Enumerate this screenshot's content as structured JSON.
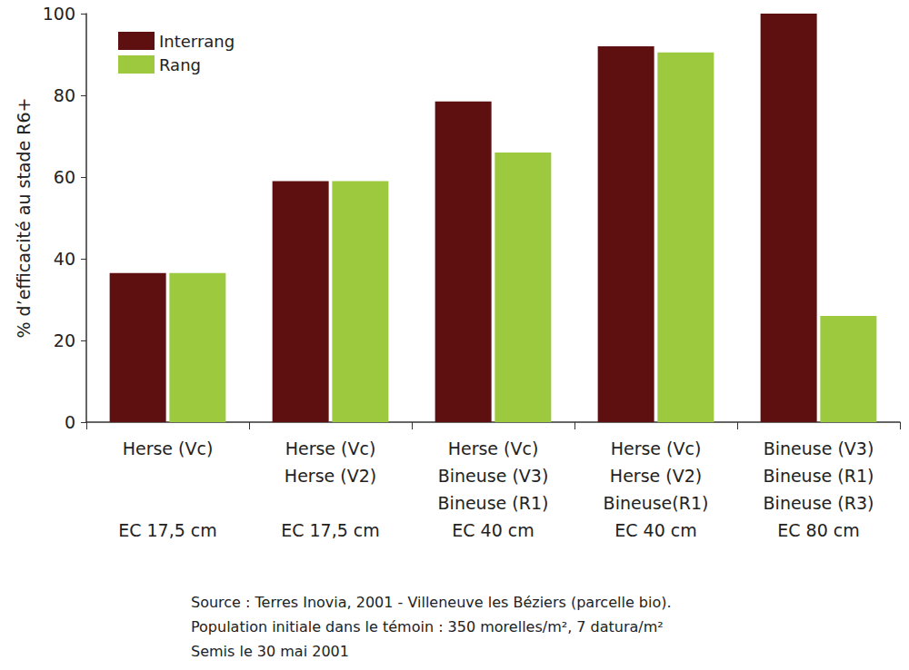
{
  "chart_data": {
    "type": "bar",
    "y_label": "% d’efficacité au stade R6+",
    "categories": [
      "Herse (Vc)\n\n\nEC 17,5 cm",
      "Herse (Vc)\nHerse (V2)\n\nEC 17,5 cm",
      "Herse (Vc)\nBineuse (V3)\nBineuse (R1)\nEC 40 cm",
      "Herse (Vc)\nHerse (V2)\nBineuse(R1)\nEC 40 cm",
      "Bineuse (V3)\nBineuse (R1)\nBineuse (R3)\nEC 80 cm"
    ],
    "series": [
      {
        "name": "Interrang",
        "color": "#5e1010",
        "values": [
          36.5,
          59,
          78.5,
          92,
          100
        ]
      },
      {
        "name": "Rang",
        "color": "#9dc93f",
        "values": [
          36.5,
          59,
          66,
          90.5,
          26
        ]
      }
    ],
    "ylim": [
      0,
      100
    ],
    "yticks": [
      0,
      20,
      40,
      60,
      80,
      100
    ],
    "grid": false,
    "legend": "upper left",
    "data_labels": false,
    "annotations": [
      "Source : Terres Inovia, 2001 - Villeneuve les Béziers (parcelle bio).",
      "Population initiale dans le témoin : 350 morelles/m², 7 datura/m²",
      "Semis le 30 mai 2001"
    ]
  }
}
